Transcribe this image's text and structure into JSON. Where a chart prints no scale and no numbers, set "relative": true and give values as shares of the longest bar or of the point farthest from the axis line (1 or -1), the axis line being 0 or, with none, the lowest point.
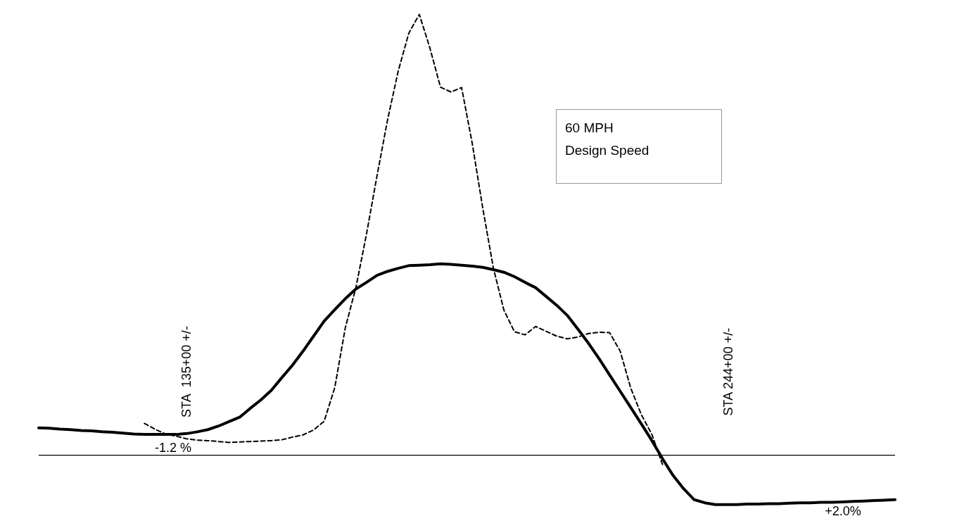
{
  "chart_data": {
    "type": "line",
    "relative": true,
    "tick_labels": false,
    "marker": "none",
    "categories": [
      null,
      null,
      null,
      null,
      null,
      null,
      null,
      null,
      null,
      null,
      null,
      null,
      null,
      null,
      null,
      null,
      null,
      null,
      null,
      null,
      null,
      null,
      null,
      null,
      null,
      null,
      null,
      null,
      null,
      null,
      null,
      null,
      null,
      null,
      null,
      null,
      null,
      null,
      null,
      null,
      null,
      null,
      null,
      null,
      null,
      null,
      null,
      null,
      null,
      null,
      null,
      null,
      null,
      null,
      null,
      null,
      null,
      null,
      null,
      null,
      null,
      null,
      null,
      null,
      null,
      null,
      null,
      null,
      null,
      null,
      null,
      null,
      null,
      null,
      null,
      null,
      null,
      null,
      null,
      null,
      null,
      null
    ],
    "series": [
      {
        "color": "#000000",
        "line_style": "solid",
        "values": [
          0.062,
          0.061,
          0.059,
          0.058,
          0.056,
          0.055,
          0.053,
          0.052,
          0.05,
          0.048,
          0.047,
          0.047,
          0.047,
          0.047,
          0.049,
          0.053,
          0.058,
          0.066,
          0.076,
          0.086,
          0.106,
          0.125,
          0.147,
          0.176,
          0.204,
          0.236,
          0.27,
          0.304,
          0.33,
          0.355,
          0.377,
          0.392,
          0.408,
          0.417,
          0.424,
          0.43,
          0.431,
          0.432,
          0.434,
          0.433,
          0.431,
          0.429,
          0.426,
          0.421,
          0.415,
          0.405,
          0.392,
          0.38,
          0.36,
          0.34,
          0.317,
          0.286,
          0.254,
          0.219,
          0.182,
          0.145,
          0.108,
          0.071,
          0.033,
          -0.008,
          -0.046,
          -0.076,
          -0.101,
          -0.108,
          -0.112,
          -0.112,
          -0.112,
          -0.111,
          -0.111,
          -0.11,
          -0.11,
          -0.109,
          -0.108,
          -0.108,
          -0.107,
          -0.107,
          -0.106,
          -0.105,
          -0.104,
          -0.103,
          -0.102,
          -0.101
        ]
      },
      {
        "color": "#000000",
        "line_style": "dashed",
        "values": [
          null,
          null,
          null,
          null,
          null,
          null,
          null,
          null,
          null,
          null,
          0.072,
          0.059,
          0.048,
          0.043,
          0.037,
          0.034,
          0.033,
          0.031,
          0.029,
          0.03,
          0.031,
          0.032,
          0.033,
          0.035,
          0.041,
          0.046,
          0.057,
          0.077,
          0.153,
          0.289,
          0.38,
          0.501,
          0.634,
          0.761,
          0.871,
          0.957,
          1,
          0.924,
          0.835,
          0.824,
          0.834,
          0.708,
          0.561,
          0.425,
          0.329,
          0.28,
          0.273,
          0.292,
          0.281,
          0.27,
          0.264,
          0.268,
          0.276,
          0.279,
          0.278,
          0.236,
          0.152,
          0.092,
          0.047,
          -0.021,
          null,
          null,
          null,
          null,
          null,
          null,
          null,
          null,
          null,
          null,
          null,
          null,
          null,
          null,
          null,
          null,
          null,
          null,
          null,
          null,
          null,
          null
        ]
      }
    ],
    "annotations": [
      "STA  135+00 +/-",
      "STA 244+00 +/-",
      "-1.2 %",
      "+2.0%",
      "60 MPH\nDesign Speed"
    ]
  }
}
